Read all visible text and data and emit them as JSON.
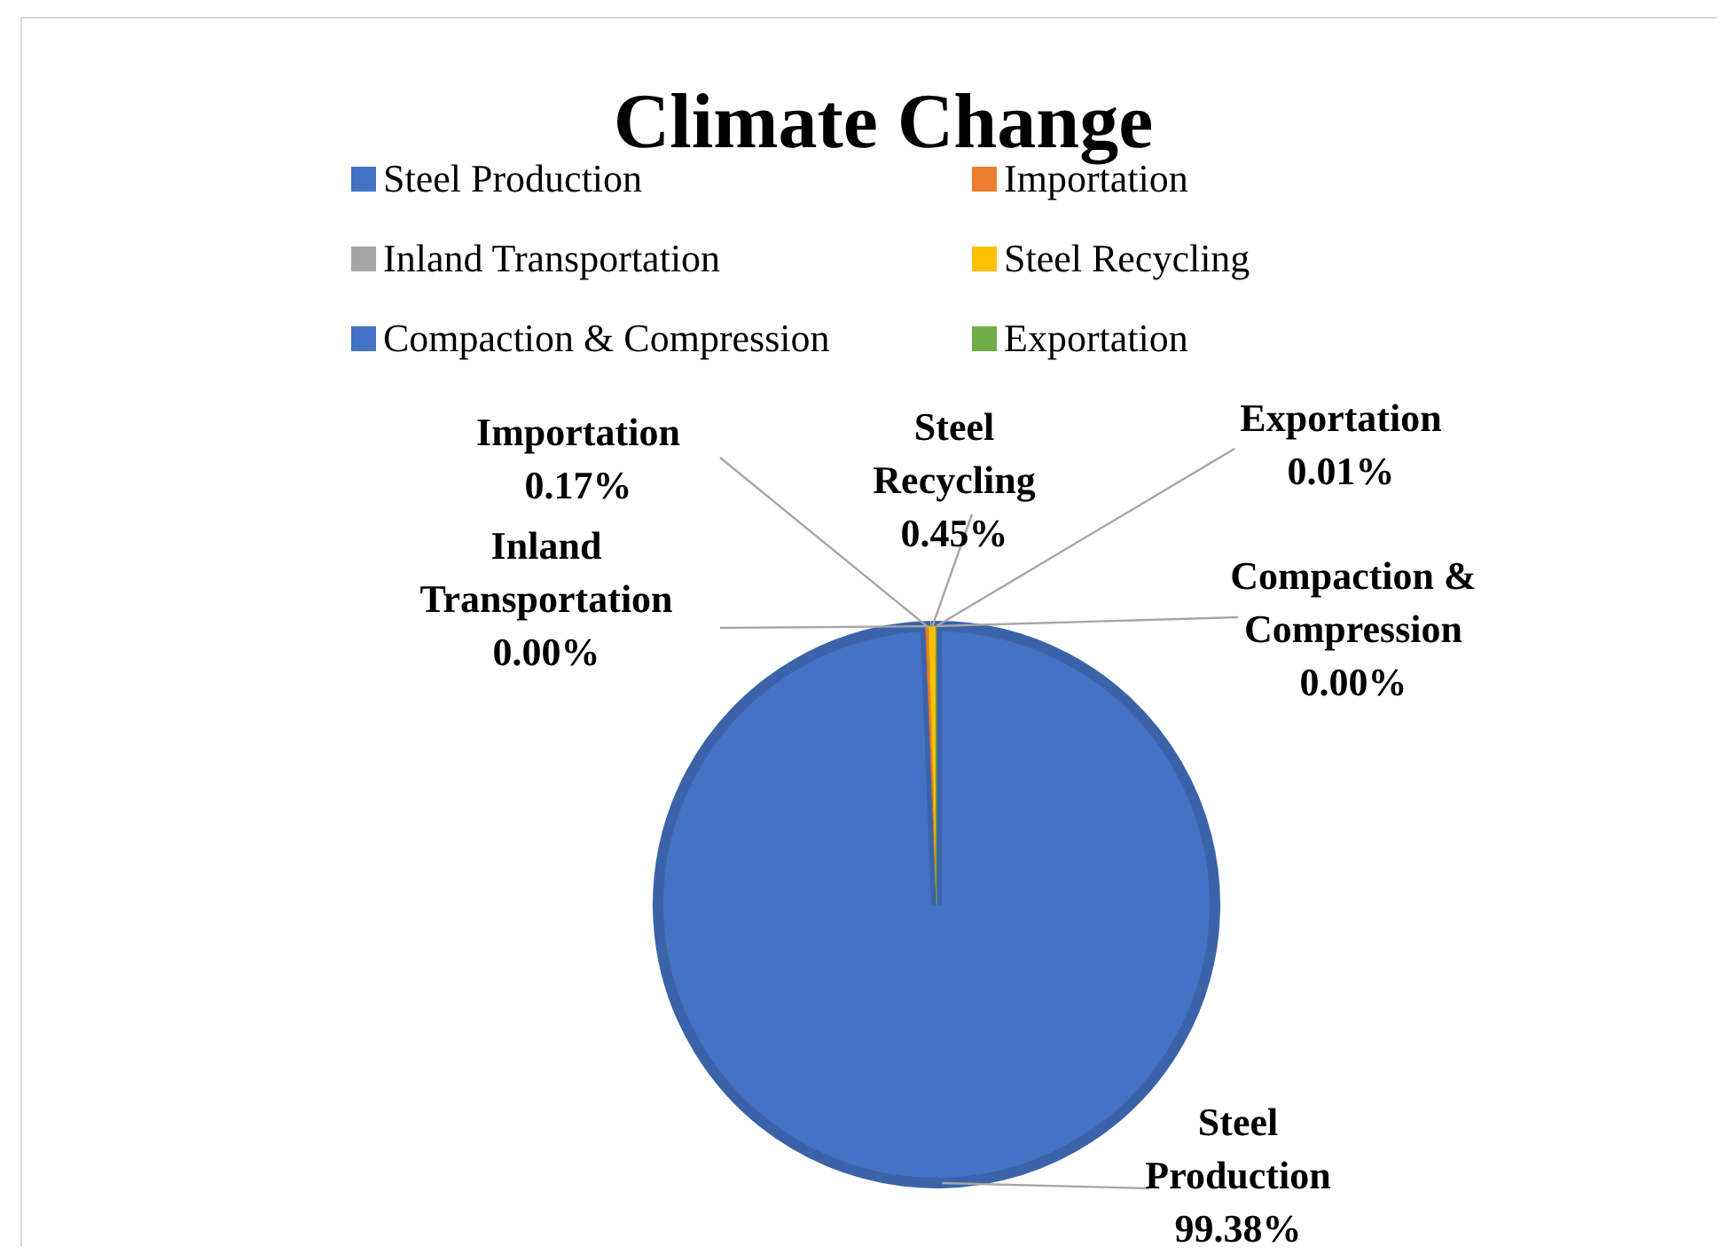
{
  "chart_data": {
    "type": "pie",
    "title": "Climate Change",
    "categories": [
      "Steel Production",
      "Importation",
      "Inland Transportation",
      "Steel Recycling",
      "Compaction & Compression",
      "Exportation"
    ],
    "values": [
      99.38,
      0.17,
      0.0,
      0.45,
      0.0,
      0.01
    ],
    "value_labels": [
      "99.38%",
      "0.17%",
      "0.00%",
      "0.45%",
      "0.00%",
      "0.01%"
    ],
    "colors": [
      "#4472c4",
      "#ed7d31",
      "#a5a5a5",
      "#ffc000",
      "#4472c4",
      "#70ad47"
    ],
    "legend": "top"
  }
}
